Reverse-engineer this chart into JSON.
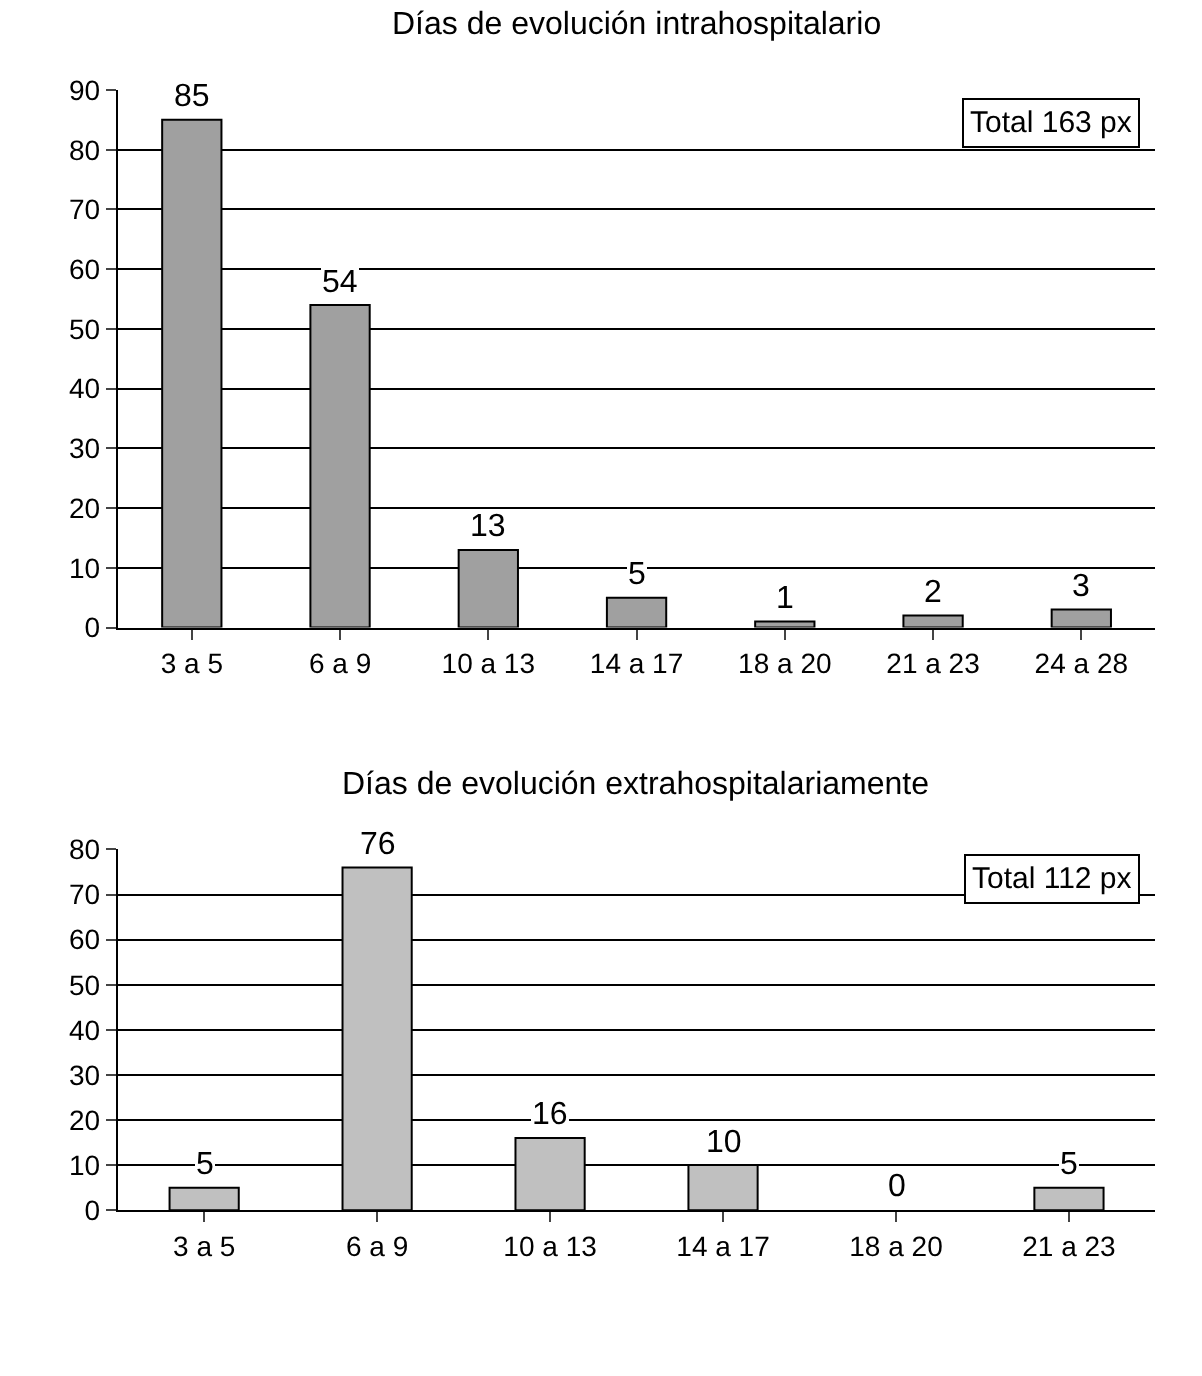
{
  "chart_data": [
    {
      "type": "bar",
      "title": "Días de evolución intrahospitalario",
      "categories": [
        "3 a 5",
        "6 a 9",
        "10 a 13",
        "14 a 17",
        "18 a 20",
        "21 a 23",
        "24 a 28"
      ],
      "values": [
        85,
        54,
        13,
        5,
        1,
        2,
        3
      ],
      "color": "#a0a0a0",
      "ylim": [
        0,
        90
      ],
      "yticks": [
        0,
        10,
        20,
        30,
        40,
        50,
        60,
        70,
        80,
        90
      ],
      "grid": "y",
      "data_labels": true,
      "annotations": [
        "Total 163 px"
      ]
    },
    {
      "type": "bar",
      "title": "Días de evolución extrahospitalariamente",
      "categories": [
        "3 a 5",
        "6 a 9",
        "10 a 13",
        "14 a 17",
        "18 a 20",
        "21 a 23"
      ],
      "values": [
        5,
        76,
        16,
        10,
        0,
        5
      ],
      "color": "#c0c0c0",
      "ylim": [
        0,
        80
      ],
      "yticks": [
        0,
        10,
        20,
        30,
        40,
        50,
        60,
        70,
        80
      ],
      "grid": "y",
      "data_labels": true,
      "annotations": [
        "Total 112 px"
      ]
    }
  ]
}
